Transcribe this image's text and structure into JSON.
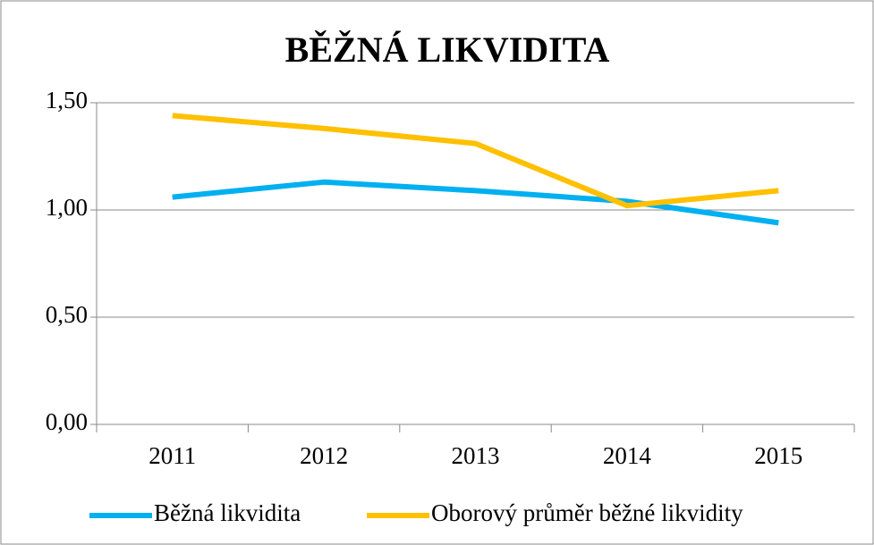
{
  "chart_data": {
    "type": "line",
    "title": "BĚŽNÁ LIKVIDITA",
    "categories": [
      "2011",
      "2012",
      "2013",
      "2014",
      "2015"
    ],
    "series": [
      {
        "name": "Běžná likvidita",
        "color": "#00b0f0",
        "values": [
          1.06,
          1.13,
          1.09,
          1.04,
          0.94
        ]
      },
      {
        "name": "Oborový průměr běžné likvidity",
        "color": "#ffc000",
        "values": [
          1.44,
          1.38,
          1.31,
          1.02,
          1.09
        ]
      }
    ],
    "ylim": [
      0,
      1.5
    ],
    "yticks": [
      {
        "value": 0,
        "label": "0,00"
      },
      {
        "value": 0.5,
        "label": "0,50"
      },
      {
        "value": 1,
        "label": "1,00"
      },
      {
        "value": 1.5,
        "label": "1,50"
      }
    ],
    "grid": true,
    "legend": "bottom"
  }
}
